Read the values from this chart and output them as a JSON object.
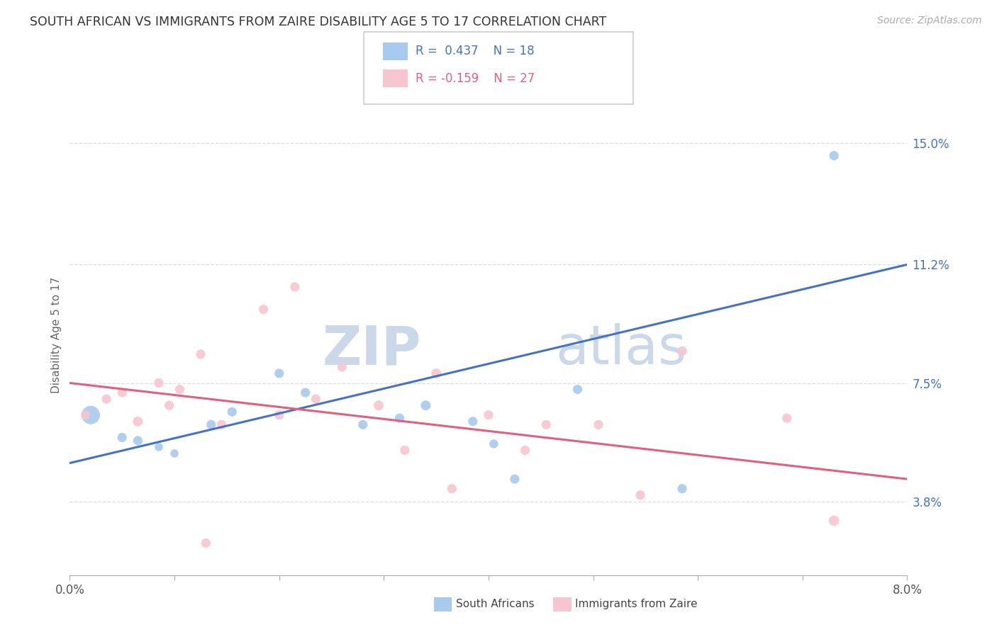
{
  "title": "SOUTH AFRICAN VS IMMIGRANTS FROM ZAIRE DISABILITY AGE 5 TO 17 CORRELATION CHART",
  "source": "Source: ZipAtlas.com",
  "ylabel": "Disability Age 5 to 17",
  "ytick_labels": [
    "3.8%",
    "7.5%",
    "11.2%",
    "15.0%"
  ],
  "ytick_values": [
    3.8,
    7.5,
    11.2,
    15.0
  ],
  "xlim": [
    0.0,
    8.0
  ],
  "ylim": [
    1.5,
    16.5
  ],
  "watermark_zip": "ZIP",
  "watermark_atlas": "atlas",
  "blue_color": "#A8CAEE",
  "pink_color": "#F7C5D0",
  "blue_line_color": "#4472C4",
  "pink_line_color": "#E06080",
  "label_color": "#4472C4",
  "south_african_x": [
    0.2,
    0.5,
    0.65,
    0.85,
    1.0,
    1.35,
    1.55,
    2.0,
    2.25,
    2.8,
    3.15,
    3.4,
    3.85,
    4.05,
    4.25,
    4.85,
    5.85,
    7.3
  ],
  "south_african_y": [
    6.5,
    5.8,
    5.7,
    5.5,
    5.3,
    6.2,
    6.6,
    7.8,
    7.2,
    6.2,
    6.4,
    6.8,
    6.3,
    5.6,
    4.5,
    7.3,
    4.2,
    14.6
  ],
  "south_african_size": [
    350,
    90,
    90,
    70,
    70,
    90,
    90,
    90,
    90,
    90,
    90,
    100,
    90,
    80,
    90,
    90,
    90,
    90
  ],
  "zaire_x": [
    0.15,
    0.35,
    0.5,
    0.65,
    0.85,
    0.95,
    1.05,
    1.25,
    1.45,
    1.85,
    2.0,
    2.35,
    2.6,
    2.95,
    3.2,
    3.5,
    3.65,
    4.0,
    4.35,
    4.55,
    5.05,
    5.45,
    5.85,
    6.85,
    7.3,
    2.15,
    1.3
  ],
  "zaire_y": [
    6.5,
    7.0,
    7.2,
    6.3,
    7.5,
    6.8,
    7.3,
    8.4,
    6.2,
    9.8,
    6.5,
    7.0,
    8.0,
    6.8,
    5.4,
    7.8,
    4.2,
    6.5,
    5.4,
    6.2,
    6.2,
    4.0,
    8.5,
    6.4,
    3.2,
    10.5,
    2.5
  ],
  "zaire_size": [
    90,
    90,
    90,
    100,
    90,
    90,
    90,
    90,
    90,
    90,
    90,
    90,
    90,
    100,
    90,
    100,
    90,
    90,
    90,
    90,
    90,
    90,
    90,
    90,
    110,
    90,
    90
  ],
  "blue_trendline_y": [
    5.0,
    11.2
  ],
  "pink_trendline_y": [
    7.5,
    4.5
  ],
  "grid_color": "#DDDDDD",
  "background_color": "#FFFFFF",
  "xtick_positions": [
    0.0,
    1.0,
    2.0,
    3.0,
    4.0,
    5.0,
    6.0,
    7.0,
    8.0
  ]
}
